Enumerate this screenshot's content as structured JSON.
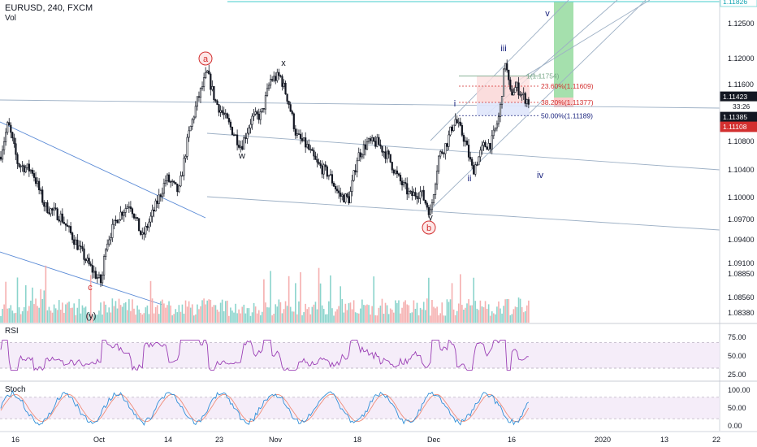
{
  "header": {
    "symbol_line": "EURUSD, 240, FXCM",
    "volume_label": "Vol"
  },
  "colors": {
    "up": "#131722",
    "down": "#131722",
    "vol_up": "#7ecfc6",
    "vol_down": "#f4a6a6",
    "channel": "#9db0c5",
    "channel_blue": "#5b8bd6",
    "rsi_line": "#9b3fb5",
    "stoch_k": "#2f8fd8",
    "stoch_d": "#ef8d7a",
    "target_green": "#7fd38a",
    "target_cyan": "#6ad6d6",
    "wave_dark": "#1a237e",
    "wave_red": "#d32f2f",
    "price_tag": "#131722"
  },
  "chart_data": [
    {
      "type": "candlestick",
      "title": "EURUSD, 240, FXCM",
      "ylim": [
        1.0825,
        1.1287
      ],
      "y_ticks": [
        1.0838,
        1.0856,
        1.0885,
        1.091,
        1.094,
        1.097,
        1.1,
        1.104,
        1.108,
        1.116,
        1.12,
        1.125
      ],
      "y_tick_labels": [
        "1.08380",
        "1.08560",
        "1.08850",
        "1.09100",
        "1.09400",
        "1.09700",
        "1.10000",
        "1.10400",
        "1.10800",
        "1.11600",
        "1.12000",
        "1.12500"
      ],
      "x_tick_labels": [
        "16",
        "Oct",
        "14",
        "23",
        "Nov",
        "18",
        "Dec",
        "16",
        "2020",
        "13",
        "22"
      ],
      "price_labels": [
        {
          "text": "1.11826",
          "value": 1.11826,
          "style": "cyan"
        },
        {
          "text": "1.11423",
          "value": 1.11423,
          "style": "dark"
        },
        {
          "text": "33:26",
          "value": 1.11319,
          "style": "plain"
        },
        {
          "text": "1.11385",
          "value": 1.11385,
          "style": "dark2"
        },
        {
          "text": "1.11108",
          "value": 1.11108,
          "style": "red"
        }
      ],
      "fib_levels": [
        {
          "label": "1(1.11754)",
          "value": 1.11754
        },
        {
          "label": "23.60%(1.11609)",
          "value": 1.11609
        },
        {
          "label": "38.20%(1.11377)",
          "value": 1.11377
        },
        {
          "label": "50.00%(1.11189)",
          "value": 1.11189
        }
      ],
      "wave_labels": [
        {
          "text": "a",
          "circled": true
        },
        {
          "text": "x",
          "circled": false
        },
        {
          "text": "w",
          "circled": false
        },
        {
          "text": "y",
          "circled": false
        },
        {
          "text": "b",
          "circled": true
        },
        {
          "text": "c",
          "circled": false
        },
        {
          "text": "(y)",
          "circled": false
        },
        {
          "text": "i",
          "circled": false
        },
        {
          "text": "ii",
          "circled": false
        },
        {
          "text": "iii",
          "circled": false
        },
        {
          "text": "iv",
          "circled": false
        },
        {
          "text": "v",
          "circled": false
        }
      ],
      "key_points": [
        {
          "x": "early Sep",
          "y": 1.1108
        },
        {
          "x": "Oct low",
          "y": 1.088
        },
        {
          "x": "Oct high (a)",
          "y": 1.118
        },
        {
          "x": "Oct (w)",
          "y": 1.1075
        },
        {
          "x": "Nov (x)",
          "y": 1.1175
        },
        {
          "x": "end Nov (y)",
          "y": 1.098
        },
        {
          "x": "Dec (i)",
          "y": 1.1115
        },
        {
          "x": "Dec (ii)",
          "y": 1.104
        },
        {
          "x": "Dec (iii)",
          "y": 1.1199
        },
        {
          "x": "Dec (iv)",
          "y": 1.1135
        }
      ]
    },
    {
      "type": "line",
      "title": "RSI",
      "ylim": [
        20,
        85
      ],
      "y_tick_labels": [
        "75.00",
        "50.00",
        "25.00"
      ],
      "y_ticks": [
        75,
        50,
        25
      ],
      "band": [
        30,
        70
      ]
    },
    {
      "type": "line",
      "title": "Stoch",
      "ylim": [
        -10,
        110
      ],
      "y_tick_labels": [
        "100.00",
        "50.00",
        "0.00"
      ],
      "y_ticks": [
        100,
        50,
        0
      ],
      "band": [
        20,
        80
      ],
      "series": [
        {
          "name": ""
        },
        {
          "name": ""
        }
      ]
    }
  ]
}
